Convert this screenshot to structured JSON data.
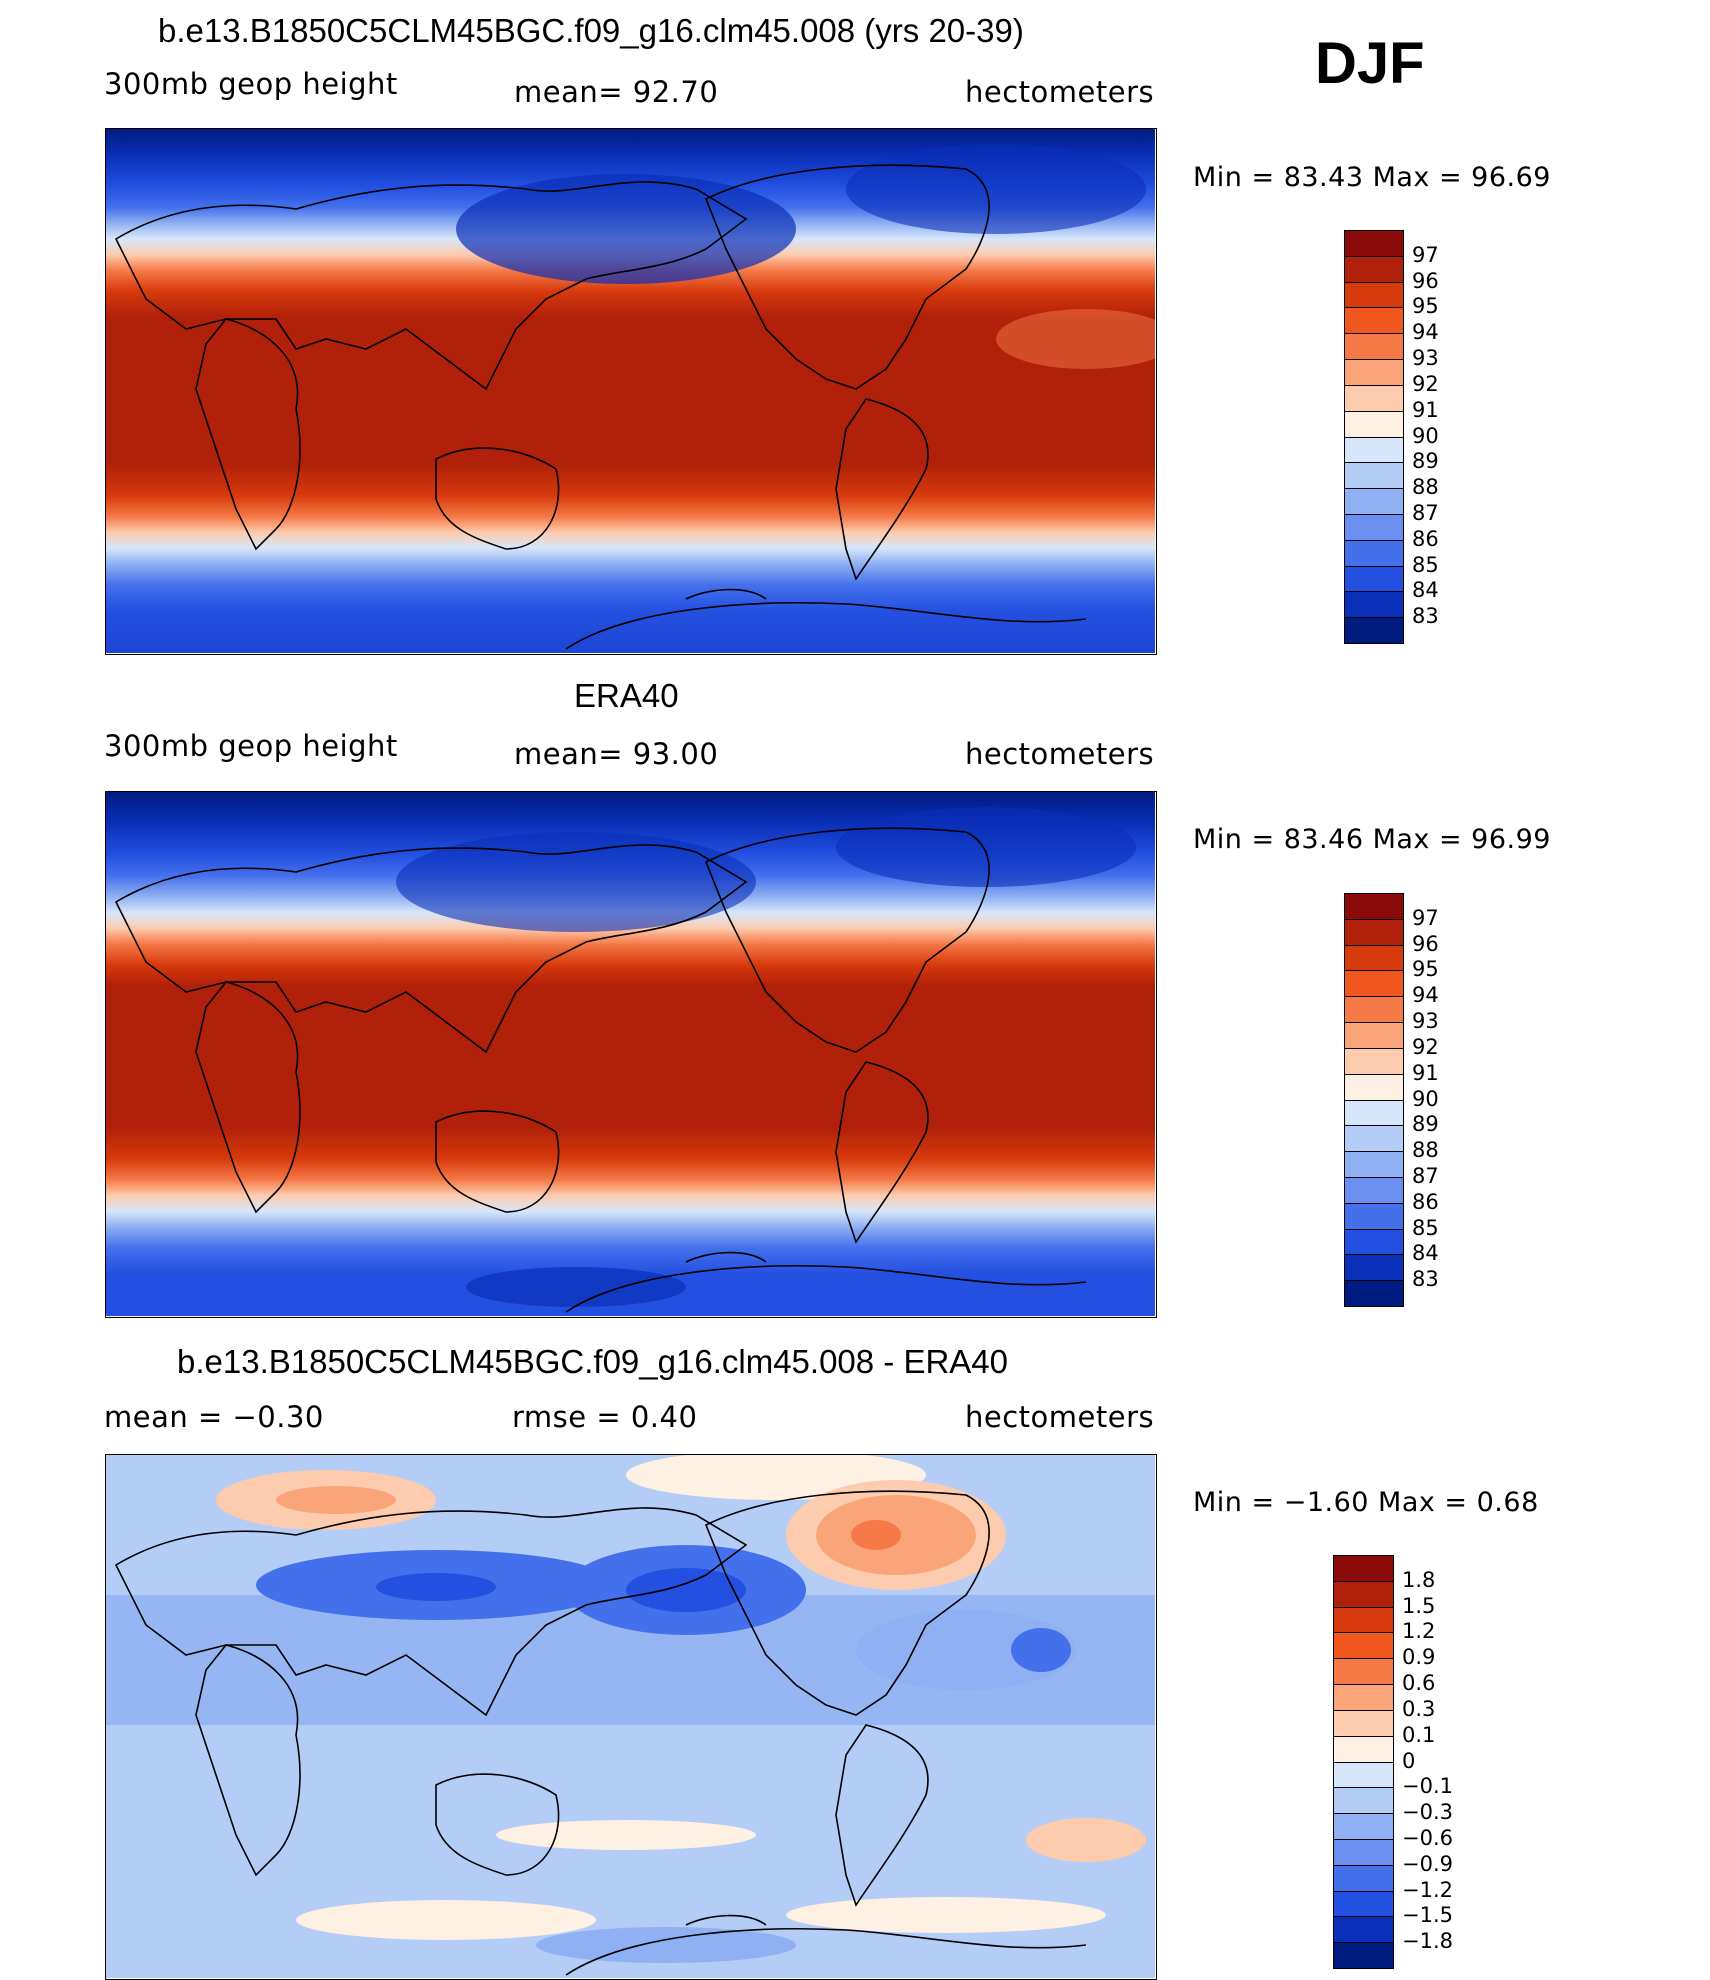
{
  "season": "DJF",
  "panels": [
    {
      "id": "model",
      "title": "b.e13.B1850C5CLM45BGC.f09_g16.clm45.008 (yrs 20-39)",
      "left_label": "300mb  geop  height",
      "center_label": "mean=   92.70",
      "right_label": "hectometers",
      "minmax": "Min  =    83.43  Max  =    96.69",
      "colorbar": {
        "labels": [
          "97",
          "96",
          "95",
          "94",
          "93",
          "92",
          "91",
          "90",
          "89",
          "88",
          "87",
          "86",
          "85",
          "84",
          "83"
        ],
        "colors": [
          "#8b0a0a",
          "#b0200a",
          "#d73a0c",
          "#f0561e",
          "#f57a48",
          "#f9a479",
          "#fdcbae",
          "#fef0e2",
          "#d6e7fb",
          "#b4cdf6",
          "#8fb0f2",
          "#6a8ff0",
          "#4570ec",
          "#2350e0",
          "#0a2fb8",
          "#001c80"
        ]
      }
    },
    {
      "id": "obs",
      "title": "ERA40",
      "left_label": "300mb  geop  height",
      "center_label": "mean=   93.00",
      "right_label": "hectometers",
      "minmax": "Min  =    83.46  Max  =    96.99",
      "colorbar": {
        "labels": [
          "97",
          "96",
          "95",
          "94",
          "93",
          "92",
          "91",
          "90",
          "89",
          "88",
          "87",
          "86",
          "85",
          "84",
          "83"
        ],
        "colors": [
          "#8b0a0a",
          "#b0200a",
          "#d73a0c",
          "#f0561e",
          "#f57a48",
          "#f9a479",
          "#fdcbae",
          "#fef0e2",
          "#d6e7fb",
          "#b4cdf6",
          "#8fb0f2",
          "#6a8ff0",
          "#4570ec",
          "#2350e0",
          "#0a2fb8",
          "#001c80"
        ]
      }
    },
    {
      "id": "diff",
      "title": "b.e13.B1850C5CLM45BGC.f09_g16.clm45.008 - ERA40",
      "left_label": "mean  =    −0.30",
      "center_label": "rmse  =     0.40",
      "right_label": "hectometers",
      "minmax": "Min  =    −1.60  Max  =      0.68",
      "colorbar": {
        "labels": [
          "1.8",
          "1.5",
          "1.2",
          "0.9",
          "0.6",
          "0.3",
          "0.1",
          "0",
          "−0.1",
          "−0.3",
          "−0.6",
          "−0.9",
          "−1.2",
          "−1.5",
          "−1.8"
        ],
        "colors": [
          "#8b0a0a",
          "#b0200a",
          "#d73a0c",
          "#f0561e",
          "#f57a48",
          "#f9a479",
          "#fdcbae",
          "#fef0e2",
          "#d6e7fb",
          "#b4cdf6",
          "#8fb0f2",
          "#6a8ff0",
          "#4570ec",
          "#2350e0",
          "#0a2fb8",
          "#001c80"
        ]
      }
    }
  ]
}
